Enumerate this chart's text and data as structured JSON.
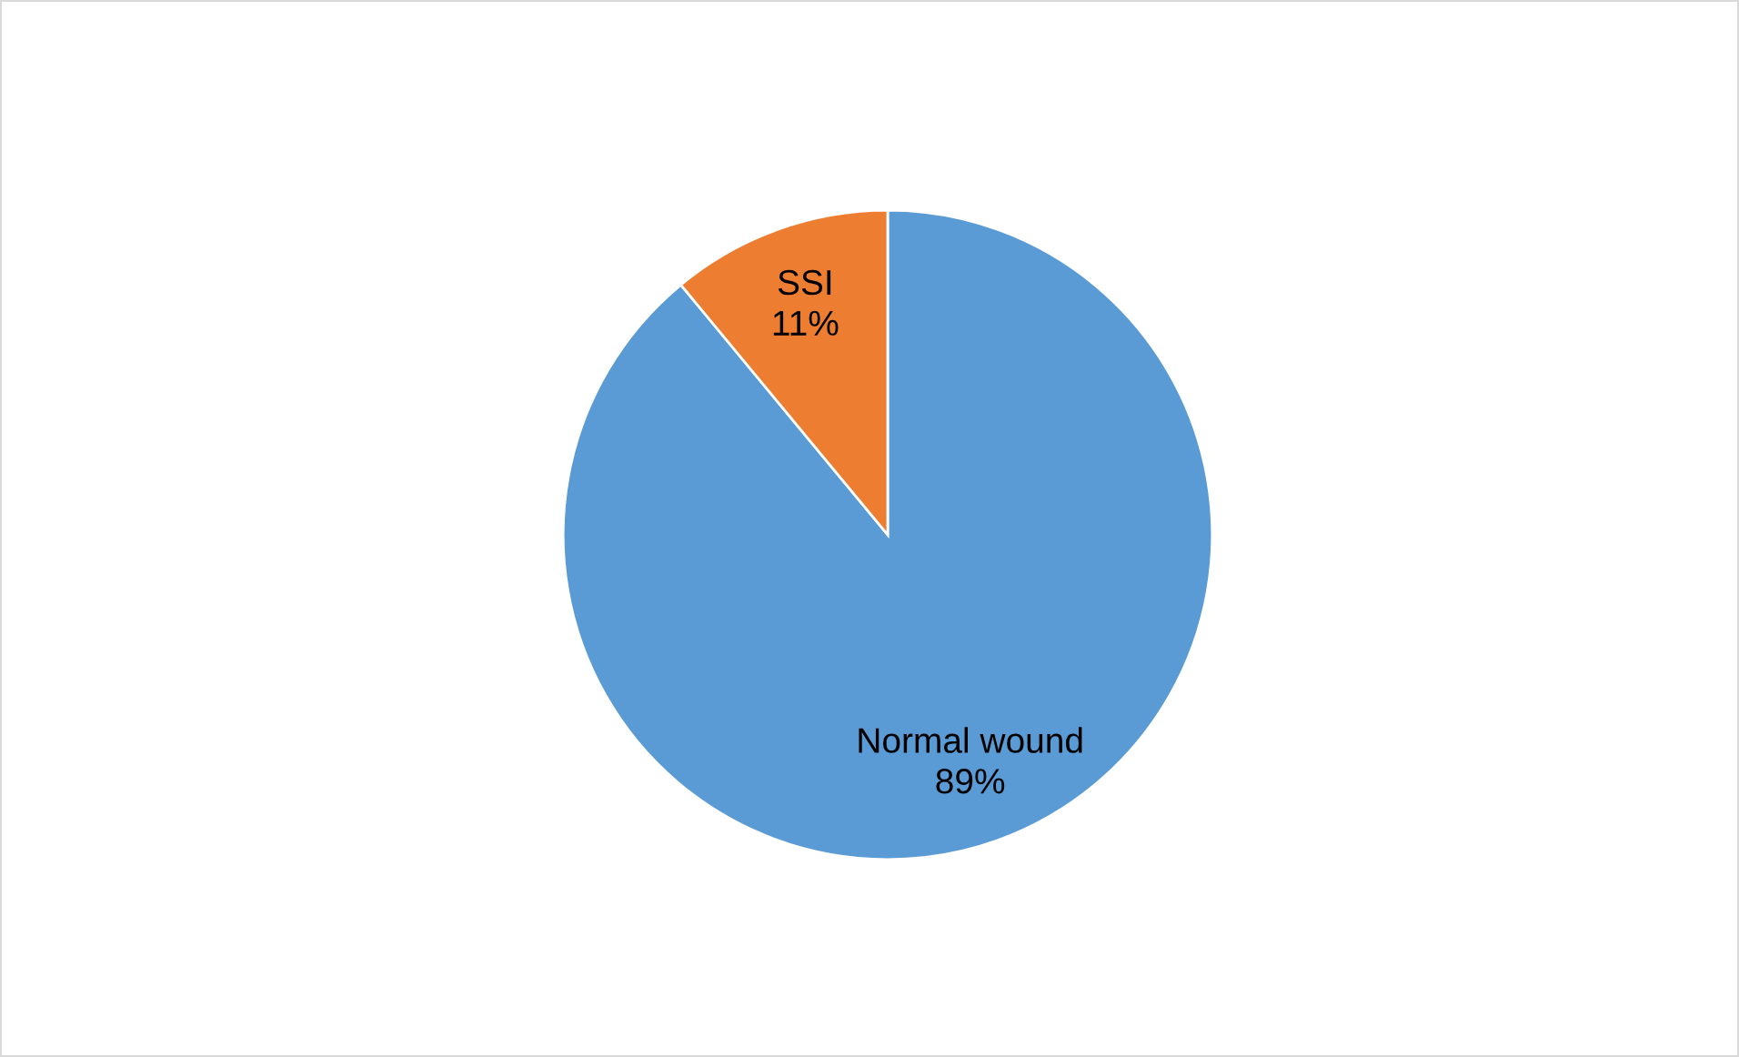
{
  "chart_data": {
    "type": "pie",
    "categories": [
      "Normal wound",
      "SSI"
    ],
    "values": [
      89,
      11
    ],
    "value_labels": [
      "89%",
      "11%"
    ],
    "colors": [
      "#5b9bd5",
      "#ed7d31"
    ],
    "legend": false
  }
}
